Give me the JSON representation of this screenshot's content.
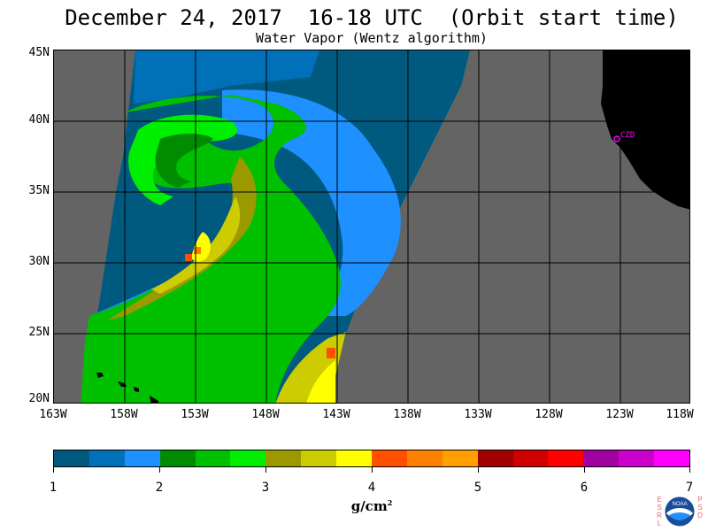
{
  "title": "December 24, 2017  16-18 UTC  (Orbit start time)",
  "subtitle": "Water Vapor (Wentz algorithm)",
  "lat_labels": [
    "45N",
    "40N",
    "35N",
    "30N",
    "25N",
    "20N"
  ],
  "lon_labels": [
    "163W",
    "158W",
    "153W",
    "148W",
    "143W",
    "138W",
    "133W",
    "128W",
    "123W",
    "118W"
  ],
  "site_label": "CZD",
  "colorbar": {
    "ticks": [
      "1",
      "2",
      "3",
      "4",
      "5",
      "6",
      "7"
    ],
    "unit": "g/cm",
    "unit_sup": "2",
    "colors": [
      "#005a80",
      "#0070b8",
      "#1e90ff",
      "#008c00",
      "#00c000",
      "#00ee00",
      "#9a9a00",
      "#cccc00",
      "#ffff00",
      "#ff5000",
      "#ff8000",
      "#ffa000",
      "#a00000",
      "#d00000",
      "#ff0000",
      "#a000a0",
      "#cc00cc",
      "#ff00ff"
    ]
  },
  "logo": {
    "left_text": "ESRL",
    "right_text": "PSD",
    "center_text": "NOAA"
  },
  "colors": {
    "no_data": "#646464",
    "land": "#000000",
    "site_marker": "#ff00ff",
    "grid": "#000000"
  }
}
